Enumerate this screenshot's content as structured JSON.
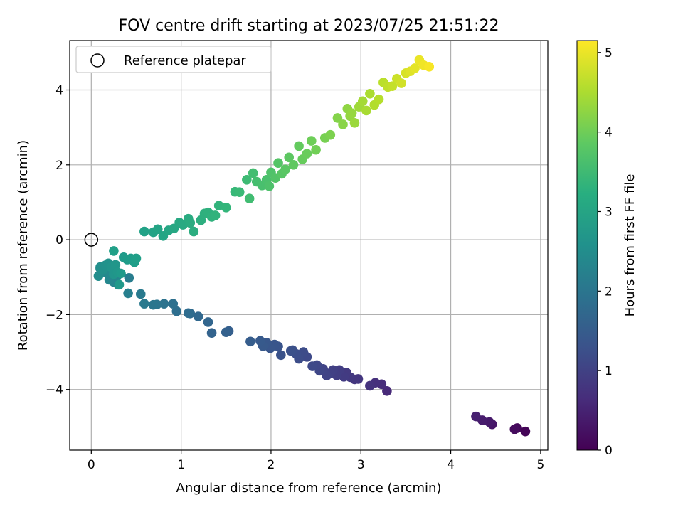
{
  "chart_data": {
    "type": "scatter",
    "title": "FOV centre drift starting at 2023/07/25 21:51:22",
    "xlabel": "Angular distance from reference (arcmin)",
    "ylabel": "Rotation from reference (arcmin)",
    "xlim": [
      -0.24,
      5.08
    ],
    "ylim": [
      -5.62,
      5.32
    ],
    "xticks": [
      0,
      1,
      2,
      3,
      4,
      5
    ],
    "xtick_labels": [
      "0",
      "1",
      "2",
      "3",
      "4",
      "5"
    ],
    "yticks": [
      -4,
      -2,
      0,
      2,
      4
    ],
    "ytick_labels": [
      "−4",
      "−2",
      "0",
      "2",
      "4"
    ],
    "grid": true,
    "legend": {
      "position": "top-left",
      "label": "Reference platepar"
    },
    "reference_point": {
      "x": 0,
      "y": 0
    },
    "colorbar": {
      "label": "Hours from first FF file",
      "range": [
        0,
        5.15
      ],
      "ticks": [
        0,
        1,
        2,
        3,
        4,
        5
      ],
      "tick_labels": [
        "0",
        "1",
        "2",
        "3",
        "4",
        "5"
      ],
      "colormap": "viridis"
    },
    "series": [
      {
        "x": [
          4.83,
          4.74,
          4.71,
          4.46,
          4.43,
          4.35,
          4.28,
          3.29,
          3.23,
          3.16,
          3.1,
          2.97,
          2.93,
          2.88,
          2.84,
          2.81,
          2.76,
          2.73,
          2.69,
          2.66,
          2.62,
          2.58,
          2.54,
          2.51,
          2.46,
          2.4,
          2.36,
          2.31,
          2.28,
          2.24,
          2.22,
          2.11,
          2.08,
          2.04,
          1.99,
          1.95,
          1.91,
          1.88,
          1.77,
          1.53,
          1.5,
          1.34,
          1.3,
          1.19,
          1.1,
          1.08,
          0.95,
          0.91,
          0.81,
          0.73,
          0.69,
          0.59,
          0.55,
          0.42,
          0.41,
          0.3,
          0.28,
          0.25,
          0.2,
          0.16,
          0.1,
          0.08
        ],
        "y": [
          -5.12,
          -5.03,
          -5.06,
          -4.93,
          -4.87,
          -4.82,
          -4.72,
          -4.04,
          -3.86,
          -3.82,
          -3.9,
          -3.72,
          -3.73,
          -3.67,
          -3.55,
          -3.66,
          -3.48,
          -3.62,
          -3.48,
          -3.56,
          -3.63,
          -3.45,
          -3.5,
          -3.35,
          -3.38,
          -3.13,
          -3.0,
          -3.18,
          -3.05,
          -2.95,
          -2.97,
          -3.08,
          -2.85,
          -2.8,
          -2.9,
          -2.75,
          -2.84,
          -2.7,
          -2.72,
          -2.44,
          -2.47,
          -2.49,
          -2.2,
          -2.05,
          -1.97,
          -1.96,
          -1.91,
          -1.71,
          -1.71,
          -1.73,
          -1.74,
          -1.71,
          -1.45,
          -1.02,
          -1.43,
          -1.2,
          -1.0,
          -1.13,
          -1.07,
          -0.87,
          -0.77,
          -0.97
        ],
        "hours": [
          0.05,
          0.1,
          0.15,
          0.3,
          0.35,
          0.4,
          0.45,
          0.6,
          0.65,
          0.7,
          0.75,
          0.8,
          0.82,
          0.85,
          0.88,
          0.9,
          0.93,
          0.95,
          0.98,
          1.0,
          1.03,
          1.05,
          1.08,
          1.1,
          1.13,
          1.15,
          1.18,
          1.2,
          1.23,
          1.25,
          1.28,
          1.3,
          1.33,
          1.35,
          1.38,
          1.4,
          1.43,
          1.45,
          1.5,
          1.55,
          1.58,
          1.62,
          1.67,
          1.72,
          1.77,
          1.8,
          1.85,
          1.9,
          1.95,
          2.0,
          2.03,
          2.08,
          2.12,
          2.17,
          2.22,
          2.27,
          2.32,
          2.36,
          2.4,
          2.44,
          2.48,
          2.52
        ]
      },
      {
        "x": [
          0.1,
          0.13,
          0.16,
          0.19,
          0.22,
          0.25,
          0.27,
          0.29,
          0.31,
          0.33,
          0.36,
          0.4,
          0.44,
          0.48,
          0.5,
          0.25
        ],
        "y": [
          -0.73,
          -0.8,
          -0.68,
          -0.63,
          -0.73,
          -0.92,
          -0.67,
          -0.87,
          -1.2,
          -0.9,
          -0.47,
          -0.53,
          -0.5,
          -0.6,
          -0.5,
          -0.3
        ],
        "hours": [
          2.55,
          2.58,
          2.6,
          2.62,
          2.65,
          2.68,
          2.7,
          2.72,
          2.75,
          2.77,
          2.8,
          2.83,
          2.85,
          2.87,
          2.89,
          2.91
        ]
      },
      {
        "x": [
          0.59,
          0.69,
          0.74,
          0.8,
          0.86,
          0.92,
          0.98,
          1.02,
          1.08,
          1.1,
          1.14,
          1.22,
          1.26,
          1.3,
          1.34,
          1.38,
          1.42,
          1.5,
          1.6,
          1.65,
          1.73,
          1.76,
          1.8,
          1.84,
          1.9,
          1.95,
          1.98,
          2.0,
          2.05,
          2.08,
          2.12,
          2.16,
          2.2,
          2.25,
          2.31,
          2.35,
          2.4,
          2.45,
          2.5,
          2.6,
          2.66,
          2.74,
          2.8,
          2.85,
          2.88,
          2.9,
          2.93,
          2.98,
          3.02,
          3.06,
          3.1,
          3.15,
          3.2,
          3.25,
          3.3,
          3.35,
          3.4,
          3.45,
          3.5,
          3.55,
          3.6,
          3.65,
          3.7,
          3.76
        ],
        "y": [
          0.22,
          0.2,
          0.28,
          0.1,
          0.25,
          0.3,
          0.46,
          0.4,
          0.56,
          0.45,
          0.22,
          0.52,
          0.7,
          0.73,
          0.61,
          0.65,
          0.91,
          0.86,
          1.28,
          1.27,
          1.6,
          1.1,
          1.78,
          1.55,
          1.45,
          1.6,
          1.43,
          1.8,
          1.65,
          2.05,
          1.76,
          1.88,
          2.2,
          2.0,
          2.5,
          2.15,
          2.3,
          2.64,
          2.4,
          2.72,
          2.8,
          3.25,
          3.08,
          3.5,
          3.3,
          3.38,
          3.12,
          3.55,
          3.7,
          3.45,
          3.9,
          3.6,
          3.75,
          4.2,
          4.08,
          4.1,
          4.3,
          4.18,
          4.45,
          4.5,
          4.58,
          4.8,
          4.66,
          4.62
        ],
        "hours": [
          2.95,
          2.98,
          3.0,
          3.02,
          3.05,
          3.07,
          3.1,
          3.12,
          3.15,
          3.17,
          3.2,
          3.23,
          3.25,
          3.28,
          3.3,
          3.32,
          3.35,
          3.38,
          3.45,
          3.48,
          3.52,
          3.55,
          3.58,
          3.6,
          3.63,
          3.65,
          3.68,
          3.7,
          3.73,
          3.75,
          3.78,
          3.8,
          3.83,
          3.86,
          3.9,
          3.93,
          3.96,
          4.0,
          4.03,
          4.08,
          4.12,
          4.18,
          4.22,
          4.27,
          4.3,
          4.33,
          4.36,
          4.4,
          4.44,
          4.47,
          4.5,
          4.55,
          4.58,
          4.62,
          4.66,
          4.7,
          4.75,
          4.8,
          4.85,
          4.9,
          4.95,
          5.0,
          5.05,
          5.1
        ]
      }
    ]
  }
}
